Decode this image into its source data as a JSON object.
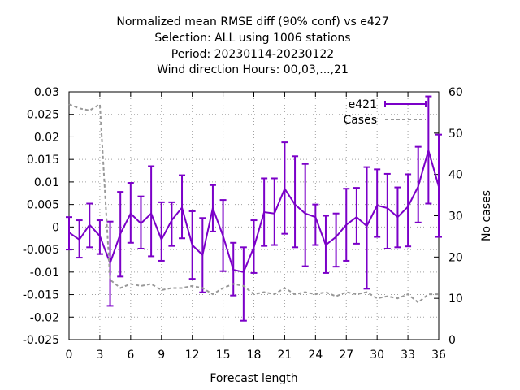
{
  "chart_data": {
    "type": "line",
    "title_lines": [
      "Normalized mean RMSE diff (90% conf) vs e427",
      "Selection: ALL using  1006 stations",
      "Period: 20230114-20230122",
      "Wind direction   Hours:  00,03,...,21"
    ],
    "xlabel": "Forecast length",
    "ylabel": "",
    "y2label": "No cases",
    "xlim": [
      0,
      36
    ],
    "ylim": [
      -0.025,
      0.03
    ],
    "y2lim": [
      0,
      60
    ],
    "x_ticks": [
      "0",
      "3",
      "6",
      "9",
      "12",
      "15",
      "18",
      "21",
      "24",
      "27",
      "30",
      "33",
      "36"
    ],
    "y_ticks": [
      "-0.025",
      "-0.02",
      "-0.015",
      "-0.01",
      "-0.005",
      "0",
      "0.005",
      "0.01",
      "0.015",
      "0.02",
      "0.025",
      "0.03"
    ],
    "y2_ticks": [
      "0",
      "10",
      "20",
      "30",
      "40",
      "50",
      "60"
    ],
    "grid": true,
    "legend_position": "top-right",
    "series": [
      {
        "name": "e421",
        "axis": "left",
        "color": "#7b00c8",
        "style": "line+errorbars",
        "x": [
          0,
          1,
          2,
          3,
          4,
          5,
          6,
          7,
          8,
          9,
          10,
          11,
          12,
          13,
          14,
          15,
          16,
          17,
          18,
          19,
          20,
          21,
          22,
          23,
          24,
          25,
          26,
          27,
          28,
          29,
          30,
          31,
          32,
          33,
          34,
          35,
          36
        ],
        "y": [
          -0.0012,
          -0.0028,
          0.0005,
          -0.002,
          -0.008,
          -0.0015,
          0.003,
          0.0008,
          0.003,
          -0.0028,
          0.0015,
          0.0043,
          -0.004,
          -0.0062,
          0.0042,
          -0.002,
          -0.0095,
          -0.01,
          -0.0045,
          0.0033,
          0.003,
          0.0085,
          0.005,
          0.003,
          0.0022,
          -0.004,
          -0.0022,
          0.0005,
          0.0022,
          0.0002,
          0.0048,
          0.0042,
          0.0022,
          0.0045,
          0.009,
          0.017,
          0.009
        ],
        "err_low": [
          -0.005,
          -0.0068,
          -0.0045,
          -0.006,
          -0.0175,
          -0.011,
          -0.0035,
          -0.0048,
          -0.0065,
          -0.0075,
          -0.0042,
          -0.0025,
          -0.0115,
          -0.0145,
          -0.001,
          -0.0098,
          -0.0152,
          -0.0208,
          -0.0102,
          -0.0042,
          -0.004,
          -0.0015,
          -0.0045,
          -0.0087,
          -0.004,
          -0.0102,
          -0.0088,
          -0.0075,
          -0.0037,
          -0.0137,
          -0.0022,
          -0.0048,
          -0.0045,
          -0.0043,
          0.001,
          0.0052,
          -0.0022
        ],
        "err_high": [
          0.0022,
          0.0015,
          0.0052,
          0.0015,
          0.0012,
          0.0078,
          0.0098,
          0.0068,
          0.0135,
          0.0055,
          0.0055,
          0.0115,
          0.0035,
          0.002,
          0.0093,
          0.006,
          -0.0035,
          -0.0045,
          0.0015,
          0.0108,
          0.0108,
          0.0188,
          0.0157,
          0.014,
          0.005,
          0.0025,
          0.003,
          0.0085,
          0.0087,
          0.0133,
          0.0128,
          0.0118,
          0.0088,
          0.0117,
          0.0178,
          0.029,
          0.0205
        ]
      },
      {
        "name": "Cases",
        "axis": "right",
        "color": "#999999",
        "style": "dashed",
        "x": [
          0,
          1,
          2,
          3,
          4,
          5,
          6,
          7,
          8,
          9,
          10,
          11,
          12,
          13,
          14,
          15,
          16,
          17,
          18,
          19,
          20,
          21,
          22,
          23,
          24,
          25,
          26,
          27,
          28,
          29,
          30,
          31,
          32,
          33,
          34,
          35,
          36
        ],
        "y": [
          57,
          56,
          55.5,
          57,
          14.5,
          12.5,
          13.5,
          13,
          13.5,
          12,
          12.5,
          12.5,
          13,
          12.5,
          11,
          12.5,
          13.5,
          13,
          11,
          11.5,
          11,
          12.5,
          11,
          11.5,
          11,
          11.5,
          10.5,
          11.5,
          11,
          11.5,
          10,
          10.5,
          10,
          11,
          9,
          11,
          11
        ]
      }
    ]
  }
}
